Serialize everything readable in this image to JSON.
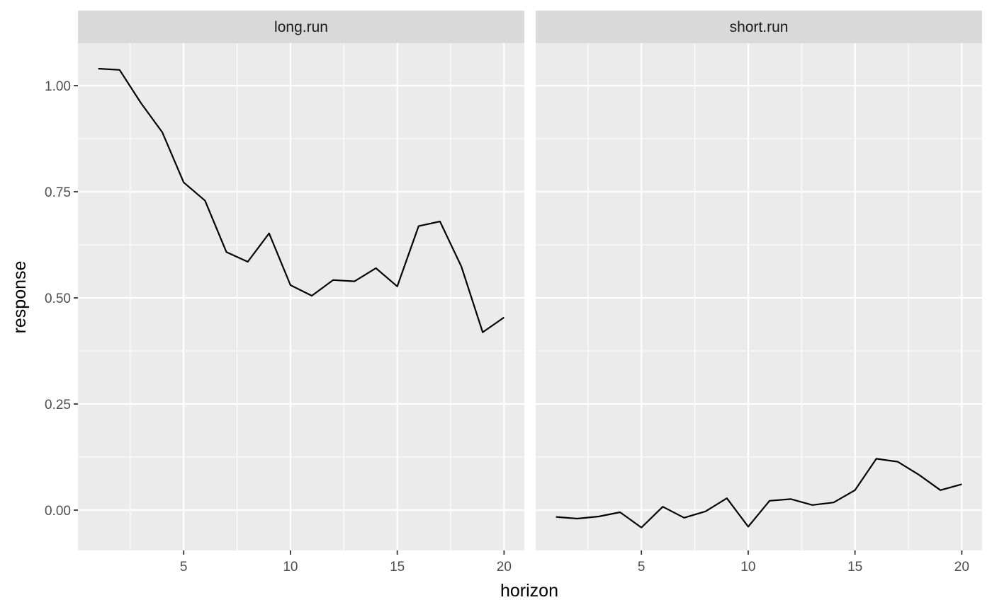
{
  "chart_data": {
    "type": "line",
    "xlabel": "horizon",
    "ylabel": "response",
    "xlim": [
      0.05,
      20.95
    ],
    "ylim": [
      -0.095,
      1.1
    ],
    "x_ticks": [
      5,
      10,
      15,
      20
    ],
    "y_ticks": [
      0.0,
      0.25,
      0.5,
      0.75,
      1.0
    ],
    "y_tick_labels": [
      "0.00",
      "0.25",
      "0.50",
      "0.75",
      "1.00"
    ],
    "grid": true,
    "facets": [
      {
        "label": "long.run",
        "x": [
          1,
          2,
          3,
          4,
          5,
          6,
          7,
          8,
          9,
          10,
          11,
          12,
          13,
          14,
          15,
          16,
          17,
          18,
          19,
          20
        ],
        "y": [
          1.04,
          1.037,
          0.959,
          0.89,
          0.772,
          0.729,
          0.608,
          0.585,
          0.652,
          0.53,
          0.505,
          0.542,
          0.539,
          0.57,
          0.527,
          0.669,
          0.68,
          0.574,
          0.419,
          0.454
        ]
      },
      {
        "label": "short.run",
        "x": [
          1,
          2,
          3,
          4,
          5,
          6,
          7,
          8,
          9,
          10,
          11,
          12,
          13,
          14,
          15,
          16,
          17,
          18,
          19,
          20
        ],
        "y": [
          -0.016,
          -0.02,
          -0.015,
          -0.005,
          -0.041,
          0.008,
          -0.018,
          -0.003,
          0.028,
          -0.039,
          0.022,
          0.026,
          0.012,
          0.018,
          0.047,
          0.121,
          0.114,
          0.083,
          0.047,
          0.061
        ]
      }
    ]
  },
  "colors": {
    "panel_background": "#EBEBEB",
    "strip_background": "#D9D9D9",
    "grid": "#FFFFFF",
    "line": "#000000",
    "tick_text": "#4D4D4D",
    "axis_title": "#000000"
  }
}
